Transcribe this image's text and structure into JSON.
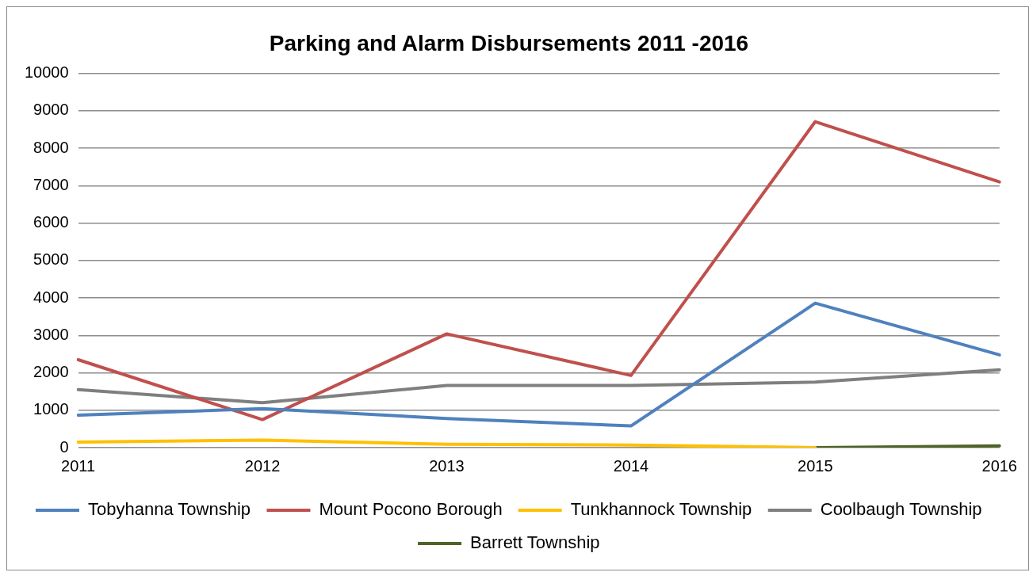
{
  "chart_data": {
    "type": "line",
    "title": "Parking and Alarm Disbursements 2011 -2016",
    "categories": [
      "2011",
      "2012",
      "2013",
      "2014",
      "2015",
      "2016"
    ],
    "series": [
      {
        "name": "Tobyhanna Township",
        "color": "#4f81bd",
        "values": [
          870,
          1040,
          780,
          580,
          3860,
          2480
        ]
      },
      {
        "name": "Mount Pocono Borough",
        "color": "#c0504d",
        "values": [
          2350,
          750,
          3040,
          1930,
          8710,
          7100
        ]
      },
      {
        "name": "Tunkhannock Township",
        "color": "#ffc000",
        "values": [
          150,
          200,
          90,
          70,
          0,
          null
        ]
      },
      {
        "name": "Coolbaugh Township",
        "color": "#7f7f7f",
        "values": [
          1550,
          1200,
          1660,
          1660,
          1750,
          2080
        ]
      },
      {
        "name": "Barrett Township",
        "color": "#4f6228",
        "values": [
          null,
          null,
          null,
          null,
          0,
          50
        ]
      }
    ],
    "ylim": [
      0,
      10000
    ],
    "yticks": [
      0,
      1000,
      2000,
      3000,
      4000,
      5000,
      6000,
      7000,
      8000,
      9000,
      10000
    ],
    "grid": "y",
    "legend": "bottom",
    "marker": "none",
    "line_style": "solid"
  }
}
